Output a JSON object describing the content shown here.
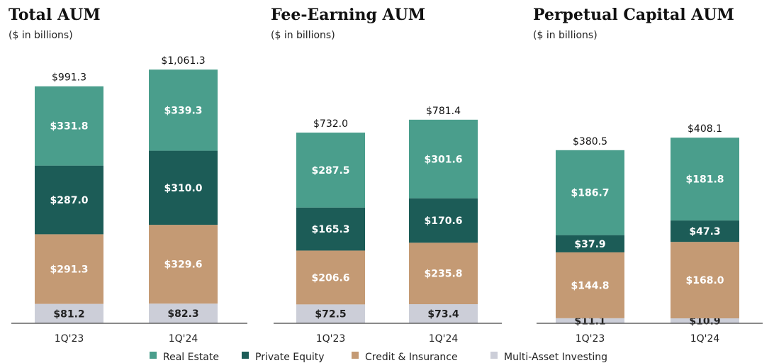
{
  "chart_data": [
    {
      "type": "bar",
      "stacked": true,
      "title": "Total AUM",
      "subtitle": "($ in billions)",
      "categories": [
        "1Q'23",
        "1Q'24"
      ],
      "series": [
        {
          "name": "Multi-Asset Investing",
          "values": [
            81.2,
            82.3
          ],
          "labels": [
            "$81.2",
            "$82.3"
          ]
        },
        {
          "name": "Credit & Insurance",
          "values": [
            291.3,
            329.6
          ],
          "labels": [
            "$291.3",
            "$329.6"
          ]
        },
        {
          "name": "Private Equity",
          "values": [
            287.0,
            310.0
          ],
          "labels": [
            "$287.0",
            "$310.0"
          ]
        },
        {
          "name": "Real Estate",
          "values": [
            331.8,
            339.3
          ],
          "labels": [
            "$331.8",
            "$339.3"
          ]
        }
      ],
      "totals": [
        991.3,
        1061.3
      ],
      "total_labels": [
        "$991.3",
        "$1,061.3"
      ]
    },
    {
      "type": "bar",
      "stacked": true,
      "title": "Fee-Earning AUM",
      "subtitle": "($ in billions)",
      "categories": [
        "1Q'23",
        "1Q'24"
      ],
      "series": [
        {
          "name": "Multi-Asset Investing",
          "values": [
            72.5,
            73.4
          ],
          "labels": [
            "$72.5",
            "$73.4"
          ]
        },
        {
          "name": "Credit & Insurance",
          "values": [
            206.6,
            235.8
          ],
          "labels": [
            "$206.6",
            "$235.8"
          ]
        },
        {
          "name": "Private Equity",
          "values": [
            165.3,
            170.6
          ],
          "labels": [
            "$165.3",
            "$170.6"
          ]
        },
        {
          "name": "Real Estate",
          "values": [
            287.5,
            301.6
          ],
          "labels": [
            "$287.5",
            "$301.6"
          ]
        }
      ],
      "totals": [
        732.0,
        781.4
      ],
      "total_labels": [
        "$732.0",
        "$781.4"
      ]
    },
    {
      "type": "bar",
      "stacked": true,
      "title": "Perpetual Capital AUM",
      "subtitle": "($ in billions)",
      "categories": [
        "1Q'23",
        "1Q'24"
      ],
      "series": [
        {
          "name": "Multi-Asset Investing",
          "values": [
            11.1,
            10.9
          ],
          "labels": [
            "$11.1",
            "$10.9"
          ]
        },
        {
          "name": "Credit & Insurance",
          "values": [
            144.8,
            168.0
          ],
          "labels": [
            "$144.8",
            "$168.0"
          ]
        },
        {
          "name": "Private Equity",
          "values": [
            37.9,
            47.3
          ],
          "labels": [
            "$37.9",
            "$47.3"
          ]
        },
        {
          "name": "Real Estate",
          "values": [
            186.7,
            181.8
          ],
          "labels": [
            "$186.7",
            "$181.8"
          ]
        }
      ],
      "totals": [
        380.5,
        408.1
      ],
      "total_labels": [
        "$380.5",
        "$408.1"
      ]
    }
  ],
  "legend": {
    "placement": "bottom",
    "items": [
      {
        "name": "Real Estate",
        "color": "#4a9e8c"
      },
      {
        "name": "Private Equity",
        "color": "#1c5c57"
      },
      {
        "name": "Credit & Insurance",
        "color": "#c49a74"
      },
      {
        "name": "Multi-Asset Investing",
        "color": "#ccced8"
      }
    ]
  },
  "colors": {
    "Real Estate": "#4a9e8c",
    "Private Equity": "#1c5c57",
    "Credit & Insurance": "#c49a74",
    "Multi-Asset Investing": "#ccced8",
    "axis": "#444444"
  },
  "label_colors": {
    "Real Estate": "#ffffff",
    "Private Equity": "#ffffff",
    "Credit & Insurance": "#ffffff",
    "Multi-Asset Investing": "#222222"
  }
}
